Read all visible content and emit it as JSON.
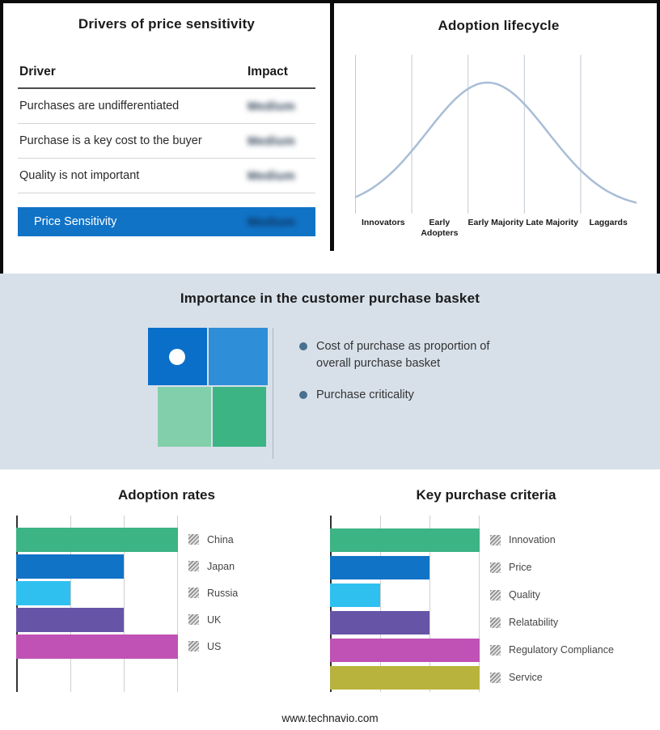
{
  "page": {
    "footer": "www.technavio.com"
  },
  "drivers_panel": {
    "title": "Drivers of price sensitivity",
    "header": {
      "driver": "Driver",
      "impact": "Impact"
    },
    "rows": [
      {
        "driver": "Purchases are undifferentiated",
        "impact": "Medium"
      },
      {
        "driver": "Purchase is a key cost to the buyer",
        "impact": "Medium"
      },
      {
        "driver": "Quality is not important",
        "impact": "Medium"
      }
    ],
    "summary": {
      "label": "Price Sensitivity",
      "impact": "Medium",
      "color": "#1173c6"
    }
  },
  "lifecycle_panel": {
    "title": "Adoption lifecycle"
  },
  "basket_panel": {
    "title": "Importance in the customer purchase basket",
    "bullets": [
      "Cost of purchase as proportion of overall purchase basket",
      "Purchase criticality"
    ],
    "quadrant_colors": {
      "top_left": "#0a6fc9",
      "top_right": "#2e8ed8",
      "bottom_left": "#82cfab",
      "bottom_right": "#3cb484"
    }
  },
  "chart_data": [
    {
      "id": "adoption_lifecycle",
      "type": "line",
      "title": "Adoption lifecycle",
      "shape": "bell-curve",
      "categories": [
        "Innovators",
        "Early Adopters",
        "Early Majority",
        "Late Majority",
        "Laggards"
      ],
      "peak_at": "Early Majority",
      "line_color": "#a9bdd6",
      "grid": "vertical-stage-boundaries"
    },
    {
      "id": "adoption_rates",
      "type": "bar",
      "orientation": "horizontal",
      "title": "Adoption rates",
      "categories": [
        "China",
        "Japan",
        "Russia",
        "UK",
        "US"
      ],
      "values": [
        3,
        2,
        1,
        2,
        3
      ],
      "xlim": [
        0,
        3
      ],
      "grid": "vertical",
      "legend_position": "right",
      "colors": [
        "#3cb484",
        "#1173c6",
        "#2fc0f0",
        "#6655a6",
        "#bf52b4"
      ]
    },
    {
      "id": "key_purchase_criteria",
      "type": "bar",
      "orientation": "horizontal",
      "title": "Key purchase criteria",
      "categories": [
        "Innovation",
        "Price",
        "Quality",
        "Relatability",
        "Regulatory Compliance",
        "Service"
      ],
      "values": [
        3,
        2,
        1,
        2,
        3,
        3
      ],
      "xlim": [
        0,
        3
      ],
      "grid": "vertical",
      "legend_position": "right",
      "colors": [
        "#3cb484",
        "#1173c6",
        "#2fc0f0",
        "#6655a6",
        "#bf52b4",
        "#b8b33c"
      ]
    }
  ]
}
